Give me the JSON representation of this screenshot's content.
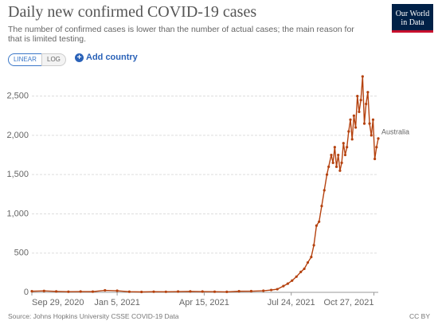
{
  "chart_data": {
    "type": "line",
    "title": "Daily new confirmed COVID-19 cases",
    "subtitle": "The number of confirmed cases is lower than the number of actual cases; the main reason for that is limited testing.",
    "logo": "Our World in Data",
    "controls": {
      "linear": "LINEAR",
      "log": "LOG",
      "add": "Add country"
    },
    "source": "Source: Johns Hopkins University CSSE COVID-19 Data",
    "license": "CC BY",
    "x": [
      "2020-09-29",
      "2020-10-13",
      "2020-10-27",
      "2020-11-10",
      "2020-11-24",
      "2020-12-08",
      "2020-12-22",
      "2021-01-05",
      "2021-01-19",
      "2021-02-02",
      "2021-02-16",
      "2021-03-02",
      "2021-03-16",
      "2021-03-30",
      "2021-04-13",
      "2021-04-27",
      "2021-05-11",
      "2021-05-25",
      "2021-06-08",
      "2021-06-22",
      "2021-07-01",
      "2021-07-08",
      "2021-07-15",
      "2021-07-20",
      "2021-07-25",
      "2021-07-30",
      "2021-08-04",
      "2021-08-08",
      "2021-08-12",
      "2021-08-16",
      "2021-08-19",
      "2021-08-22",
      "2021-08-25",
      "2021-08-28",
      "2021-08-31",
      "2021-09-03",
      "2021-09-05",
      "2021-09-08",
      "2021-09-10",
      "2021-09-12",
      "2021-09-14",
      "2021-09-16",
      "2021-09-18",
      "2021-09-20",
      "2021-09-22",
      "2021-09-24",
      "2021-09-26",
      "2021-09-28",
      "2021-09-30",
      "2021-10-02",
      "2021-10-04",
      "2021-10-06",
      "2021-10-08",
      "2021-10-10",
      "2021-10-12",
      "2021-10-14",
      "2021-10-16",
      "2021-10-18",
      "2021-10-20",
      "2021-10-22",
      "2021-10-24",
      "2021-10-26",
      "2021-10-28",
      "2021-10-30",
      "2021-11-01"
    ],
    "series": [
      {
        "name": "Australia",
        "color": "#b5420f",
        "values": [
          14,
          18,
          12,
          8,
          10,
          9,
          25,
          20,
          8,
          5,
          8,
          7,
          10,
          12,
          10,
          8,
          6,
          14,
          15,
          20,
          30,
          40,
          80,
          110,
          150,
          200,
          260,
          300,
          380,
          450,
          600,
          850,
          900,
          1100,
          1300,
          1500,
          1600,
          1750,
          1650,
          1850,
          1600,
          1750,
          1550,
          1650,
          1900,
          1750,
          1850,
          2050,
          2200,
          1950,
          2250,
          2100,
          2500,
          2300,
          2450,
          2750,
          2150,
          2400,
          2550,
          2150,
          2000,
          2200,
          1700,
          1850,
          1960
        ]
      }
    ],
    "xlim": [
      "2020-09-29",
      "2021-11-01"
    ],
    "xticks": [
      {
        "value": "2020-09-29",
        "label": "Sep 29, 2020"
      },
      {
        "value": "2021-01-05",
        "label": "Jan 5, 2021"
      },
      {
        "value": "2021-04-15",
        "label": "Apr 15, 2021"
      },
      {
        "value": "2021-07-24",
        "label": "Jul 24, 2021"
      },
      {
        "value": "2021-10-27",
        "label": "Oct 27, 2021"
      }
    ],
    "ylim": [
      0,
      2750
    ],
    "yticks": [
      0,
      500,
      {
        "value": 1000,
        "label": "1,000"
      },
      {
        "value": 1500,
        "label": "1,500"
      },
      {
        "value": 2000,
        "label": "2,000"
      },
      {
        "value": 2500,
        "label": "2,500"
      }
    ],
    "grid": true
  }
}
